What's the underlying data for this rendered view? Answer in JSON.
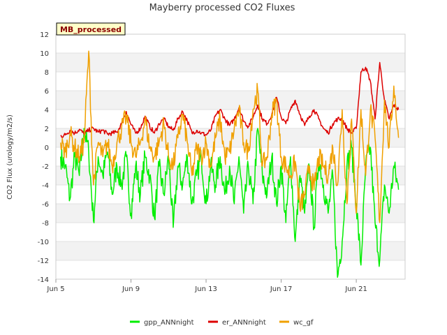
{
  "chart_data": {
    "type": "line",
    "title": "Mayberry processed CO2 Fluxes",
    "ylabel": "CO2 Flux (urology/m2/s)",
    "xlabel": "",
    "site_tag": "MB_processed",
    "ylim": [
      -14,
      12
    ],
    "yticks": [
      -14,
      -12,
      -10,
      -8,
      -6,
      -4,
      -2,
      0,
      2,
      4,
      6,
      8,
      10,
      12
    ],
    "ytick_labels": [
      "-14",
      "-12",
      "-10",
      "-8",
      "-6",
      "-4",
      "-2",
      "0",
      "2",
      "4",
      "6",
      "8",
      "10",
      "12"
    ],
    "xlim_days": [
      5,
      23.6
    ],
    "xticks": [
      {
        "day": 5,
        "label": "Jun 5"
      },
      {
        "day": 9,
        "label": "Jun 9"
      },
      {
        "day": 13,
        "label": "Jun 13"
      },
      {
        "day": 17,
        "label": "Jun 17"
      },
      {
        "day": 21,
        "label": "Jun 21"
      }
    ],
    "series": [
      {
        "name": "gpp_ANNnight",
        "color": "#00ee00",
        "x": [
          5.25,
          5.5,
          5.75,
          6.0,
          6.25,
          6.5,
          6.75,
          7.0,
          7.25,
          7.5,
          7.75,
          8.0,
          8.25,
          8.5,
          8.75,
          9.0,
          9.25,
          9.5,
          9.75,
          10.0,
          10.25,
          10.5,
          10.75,
          11.0,
          11.25,
          11.5,
          11.75,
          12.0,
          12.25,
          12.5,
          12.75,
          13.0,
          13.25,
          13.5,
          13.75,
          14.0,
          14.25,
          14.5,
          14.75,
          15.0,
          15.25,
          15.5,
          15.75,
          16.0,
          16.25,
          16.5,
          16.75,
          17.0,
          17.25,
          17.5,
          17.75,
          18.0,
          18.25,
          18.5,
          18.75,
          19.0,
          19.25,
          19.5,
          19.75,
          20.0,
          20.25,
          20.5,
          20.75,
          21.0,
          21.25,
          21.5,
          21.75,
          22.0,
          22.25,
          22.5,
          22.75,
          23.0,
          23.25
        ],
        "values": [
          -1,
          -2,
          -5.5,
          -1,
          -3,
          2,
          -0.5,
          -7.8,
          -1,
          -3,
          -0.5,
          -5,
          -2,
          -4,
          -1,
          -7,
          -2,
          -5,
          -1,
          -3,
          -7.5,
          -2,
          -5,
          -1,
          -8.5,
          -2,
          -4,
          -1,
          -6,
          -3,
          -1,
          -6,
          -2,
          -4,
          -1,
          -5,
          -2,
          -6,
          -1,
          -7,
          -2,
          -6,
          2,
          -3,
          -5,
          -1,
          -6,
          -2,
          -8,
          -1,
          -10,
          -3,
          -7,
          -2,
          -8.5,
          -1,
          -4,
          -7,
          -3,
          -13.8,
          -10,
          -2,
          0,
          -6,
          -12.5,
          -2,
          0,
          -8,
          -12,
          -4,
          -7,
          -2,
          -4.5
        ]
      },
      {
        "name": "er_ANNnight",
        "color": "#dd0000",
        "x": [
          5.25,
          5.5,
          5.75,
          6.0,
          6.25,
          6.5,
          6.75,
          7.0,
          7.25,
          7.5,
          7.75,
          8.0,
          8.25,
          8.5,
          8.75,
          9.0,
          9.25,
          9.5,
          9.75,
          10.0,
          10.25,
          10.5,
          10.75,
          11.0,
          11.25,
          11.5,
          11.75,
          12.0,
          12.25,
          12.5,
          12.75,
          13.0,
          13.25,
          13.5,
          13.75,
          14.0,
          14.25,
          14.5,
          14.75,
          15.0,
          15.25,
          15.5,
          15.75,
          16.0,
          16.25,
          16.5,
          16.75,
          17.0,
          17.25,
          17.5,
          17.75,
          18.0,
          18.25,
          18.5,
          18.75,
          19.0,
          19.25,
          19.5,
          19.75,
          20.0,
          20.25,
          20.5,
          20.75,
          21.0,
          21.25,
          21.5,
          21.75,
          22.0,
          22.25,
          22.5,
          22.75,
          23.0,
          23.25
        ],
        "values": [
          1.2,
          1.3,
          1.8,
          1.5,
          1.9,
          1.4,
          1.8,
          2.0,
          1.6,
          1.8,
          1.4,
          1.5,
          1.6,
          2.5,
          3.8,
          2.4,
          1.5,
          2.0,
          3.3,
          2.2,
          1.5,
          2.5,
          3.0,
          2.2,
          1.8,
          3.0,
          3.8,
          2.8,
          1.5,
          1.8,
          1.5,
          1.3,
          1.8,
          3.3,
          4.0,
          3.0,
          2.3,
          3.0,
          4.2,
          2.8,
          2.2,
          3.2,
          4.5,
          3.0,
          2.5,
          3.5,
          5.3,
          3.2,
          2.5,
          4.0,
          5.0,
          3.5,
          2.3,
          3.3,
          4.0,
          3.0,
          2.0,
          1.5,
          2.5,
          3.0,
          3.0,
          2.0,
          1.5,
          2.0,
          8.0,
          8.5,
          7.0,
          3.0,
          9.0,
          5.0,
          3.0,
          4.5,
          4.0
        ]
      },
      {
        "name": "wc_gf",
        "color": "#f0a000",
        "x": [
          5.25,
          5.5,
          5.75,
          6.0,
          6.25,
          6.5,
          6.75,
          7.0,
          7.25,
          7.5,
          7.75,
          8.0,
          8.25,
          8.5,
          8.75,
          9.0,
          9.25,
          9.5,
          9.75,
          10.0,
          10.25,
          10.5,
          10.75,
          11.0,
          11.25,
          11.5,
          11.75,
          12.0,
          12.25,
          12.5,
          12.75,
          13.0,
          13.25,
          13.5,
          13.75,
          14.0,
          14.25,
          14.5,
          14.75,
          15.0,
          15.25,
          15.5,
          15.75,
          16.0,
          16.25,
          16.5,
          16.75,
          17.0,
          17.25,
          17.5,
          17.75,
          18.0,
          18.25,
          18.5,
          18.75,
          19.0,
          19.25,
          19.5,
          19.75,
          20.0,
          20.25,
          20.5,
          20.75,
          21.0,
          21.25,
          21.5,
          21.75,
          22.0,
          22.25,
          22.5,
          22.75,
          23.0,
          23.25
        ],
        "values": [
          0.5,
          -0.5,
          1.5,
          0,
          -1,
          0.5,
          10.2,
          -4,
          0.5,
          -1,
          0.5,
          -2,
          0.5,
          2,
          3.3,
          0.5,
          -1,
          0.5,
          3,
          0,
          -1,
          0.5,
          2.5,
          -1,
          -2,
          1,
          3.5,
          0.5,
          -3,
          0,
          -1,
          0.5,
          -2,
          1,
          3,
          -1,
          -0.5,
          2,
          4,
          0.5,
          -0.5,
          4,
          6,
          -2,
          -1,
          3.5,
          5,
          -1,
          -2,
          -3,
          -1.5,
          -6.5,
          -5,
          -2,
          -4.5,
          -1,
          -2,
          -3,
          0,
          -4,
          4,
          -6,
          3,
          -7,
          4,
          -3,
          4,
          1,
          -8,
          5,
          0,
          6.5,
          1
        ]
      }
    ]
  }
}
